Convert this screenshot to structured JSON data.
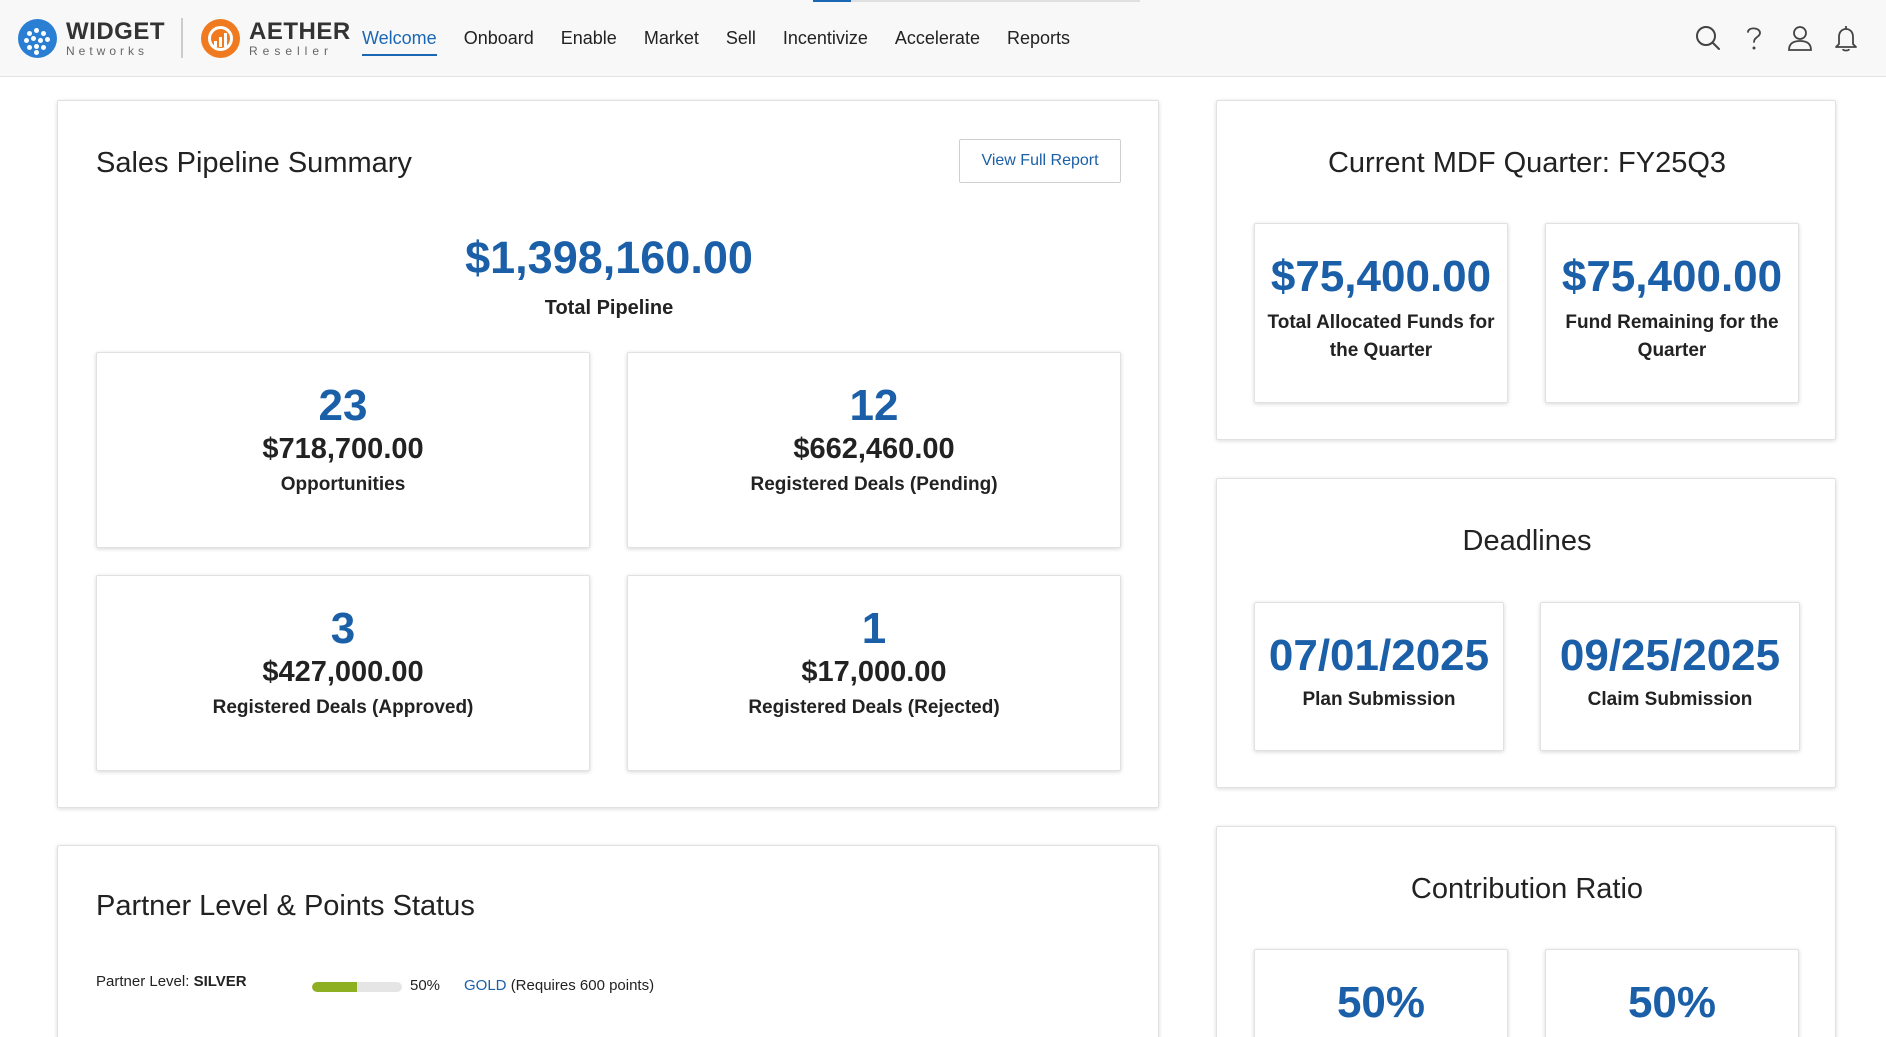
{
  "brand": {
    "widget_name": "WIDGET",
    "widget_sub": "Networks",
    "aether_name": "AETHER",
    "aether_sub": "Reseller"
  },
  "nav": {
    "items": [
      {
        "label": "Welcome",
        "active": true
      },
      {
        "label": "Onboard"
      },
      {
        "label": "Enable"
      },
      {
        "label": "Market"
      },
      {
        "label": "Sell"
      },
      {
        "label": "Incentivize"
      },
      {
        "label": "Accelerate"
      },
      {
        "label": "Reports"
      }
    ]
  },
  "header_icons": [
    "search-icon",
    "help-icon",
    "user-icon",
    "bell-icon"
  ],
  "pipeline": {
    "title": "Sales Pipeline Summary",
    "view_report_label": "View Full Report",
    "total_value": "$1,398,160.00",
    "total_label": "Total Pipeline",
    "stats": [
      {
        "count": "23",
        "amount": "$718,700.00",
        "label": "Opportunities"
      },
      {
        "count": "12",
        "amount": "$662,460.00",
        "label": "Registered Deals (Pending)"
      },
      {
        "count": "3",
        "amount": "$427,000.00",
        "label": "Registered Deals (Approved)"
      },
      {
        "count": "1",
        "amount": "$17,000.00",
        "label": "Registered Deals (Rejected)"
      }
    ]
  },
  "partner": {
    "title": "Partner Level & Points Status",
    "level_label": "Partner Level:",
    "level_value": "SILVER",
    "progress_percent": 50,
    "progress_text": "50%",
    "next_level": "GOLD",
    "next_level_req": "(Requires 600 points)"
  },
  "mdf": {
    "title": "Current MDF Quarter: FY25Q3",
    "stats": [
      {
        "value": "$75,400.00",
        "label_line1": "Total Allocated Funds for",
        "label_line2": "the Quarter"
      },
      {
        "value": "$75,400.00",
        "label_line1": "Fund Remaining for the",
        "label_line2": "Quarter"
      }
    ]
  },
  "deadlines": {
    "title": "Deadlines",
    "items": [
      {
        "date": "07/01/2025",
        "label": "Plan Submission"
      },
      {
        "date": "09/25/2025",
        "label": "Claim Submission"
      }
    ]
  },
  "contribution": {
    "title": "Contribution Ratio",
    "values": [
      "50%",
      "50%"
    ]
  },
  "colors": {
    "accent": "#1a5fa8",
    "progress": "#8cb021",
    "widget_brand": "#2a7fd4",
    "aether_brand": "#ef7a1f"
  }
}
